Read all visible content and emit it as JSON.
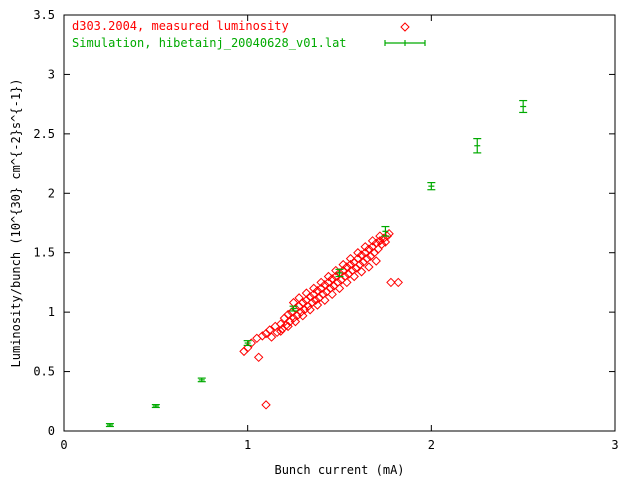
{
  "chart_data": {
    "type": "scatter",
    "xlabel": "Bunch current (mA)",
    "ylabel": "Luminosity/bunch (10^{30} cm^{-2}s^{-1})",
    "xlim": [
      0,
      3
    ],
    "ylim": [
      0,
      3.5
    ],
    "xticks": [
      "0",
      "1",
      "2",
      "3"
    ],
    "yticks": [
      "0",
      "0.5",
      "1",
      "1.5",
      "2",
      "2.5",
      "3",
      "3.5"
    ],
    "legend_position": "top-left",
    "series": [
      {
        "name": "d303.2004, measured luminosity",
        "marker": "diamond",
        "color": "#ff0000",
        "points": [
          [
            0.98,
            0.67
          ],
          [
            1.0,
            0.7
          ],
          [
            1.02,
            0.74
          ],
          [
            1.05,
            0.78
          ],
          [
            1.06,
            0.62
          ],
          [
            1.08,
            0.8
          ],
          [
            1.1,
            0.22
          ],
          [
            1.1,
            0.82
          ],
          [
            1.12,
            0.85
          ],
          [
            1.13,
            0.79
          ],
          [
            1.15,
            0.88
          ],
          [
            1.16,
            0.83
          ],
          [
            1.18,
            0.9
          ],
          [
            1.19,
            0.86
          ],
          [
            1.2,
            0.95
          ],
          [
            1.21,
            0.89
          ],
          [
            1.22,
            0.98
          ],
          [
            1.23,
            0.92
          ],
          [
            1.24,
            1.0
          ],
          [
            1.25,
            0.95
          ],
          [
            1.26,
            1.03
          ],
          [
            1.27,
            0.97
          ],
          [
            1.28,
            1.05
          ],
          [
            1.29,
            1.0
          ],
          [
            1.3,
            1.08
          ],
          [
            1.31,
            1.02
          ],
          [
            1.32,
            1.1
          ],
          [
            1.33,
            1.05
          ],
          [
            1.34,
            1.13
          ],
          [
            1.35,
            1.08
          ],
          [
            1.36,
            1.15
          ],
          [
            1.37,
            1.1
          ],
          [
            1.38,
            1.18
          ],
          [
            1.39,
            1.12
          ],
          [
            1.4,
            1.2
          ],
          [
            1.41,
            1.15
          ],
          [
            1.42,
            1.23
          ],
          [
            1.43,
            1.17
          ],
          [
            1.44,
            1.25
          ],
          [
            1.45,
            1.2
          ],
          [
            1.46,
            1.28
          ],
          [
            1.47,
            1.22
          ],
          [
            1.48,
            1.3
          ],
          [
            1.49,
            1.25
          ],
          [
            1.5,
            1.33
          ],
          [
            1.51,
            1.27
          ],
          [
            1.52,
            1.35
          ],
          [
            1.53,
            1.3
          ],
          [
            1.54,
            1.38
          ],
          [
            1.55,
            1.32
          ],
          [
            1.56,
            1.4
          ],
          [
            1.57,
            1.35
          ],
          [
            1.58,
            1.42
          ],
          [
            1.59,
            1.37
          ],
          [
            1.6,
            1.45
          ],
          [
            1.61,
            1.4
          ],
          [
            1.62,
            1.48
          ],
          [
            1.63,
            1.42
          ],
          [
            1.64,
            1.5
          ],
          [
            1.65,
            1.45
          ],
          [
            1.66,
            1.53
          ],
          [
            1.67,
            1.47
          ],
          [
            1.68,
            1.55
          ],
          [
            1.69,
            1.5
          ],
          [
            1.7,
            1.58
          ],
          [
            1.71,
            1.53
          ],
          [
            1.72,
            1.6
          ],
          [
            1.73,
            1.57
          ],
          [
            1.74,
            1.62
          ],
          [
            1.75,
            1.59
          ],
          [
            1.76,
            1.64
          ],
          [
            1.77,
            1.66
          ],
          [
            1.78,
            1.25
          ],
          [
            1.82,
            1.25
          ],
          [
            1.18,
            0.84
          ],
          [
            1.22,
            0.88
          ],
          [
            1.26,
            0.92
          ],
          [
            1.3,
            0.97
          ],
          [
            1.34,
            1.02
          ],
          [
            1.38,
            1.06
          ],
          [
            1.42,
            1.1
          ],
          [
            1.46,
            1.15
          ],
          [
            1.5,
            1.2
          ],
          [
            1.54,
            1.25
          ],
          [
            1.58,
            1.3
          ],
          [
            1.62,
            1.34
          ],
          [
            1.66,
            1.38
          ],
          [
            1.7,
            1.43
          ],
          [
            1.25,
            1.08
          ],
          [
            1.28,
            1.12
          ],
          [
            1.32,
            1.16
          ],
          [
            1.36,
            1.2
          ],
          [
            1.4,
            1.25
          ],
          [
            1.44,
            1.3
          ],
          [
            1.48,
            1.35
          ],
          [
            1.52,
            1.4
          ],
          [
            1.56,
            1.45
          ],
          [
            1.6,
            1.5
          ],
          [
            1.64,
            1.55
          ],
          [
            1.68,
            1.6
          ],
          [
            1.72,
            1.64
          ]
        ]
      },
      {
        "name": "Simulation, hibetainj_20040628_v01.lat",
        "marker": "errorbar",
        "color": "#00aa00",
        "points": [
          [
            0.25,
            0.05,
            0.01
          ],
          [
            0.5,
            0.21,
            0.01
          ],
          [
            0.75,
            0.43,
            0.015
          ],
          [
            1.0,
            0.74,
            0.02
          ],
          [
            1.25,
            1.03,
            0.02
          ],
          [
            1.5,
            1.33,
            0.03
          ],
          [
            1.75,
            1.68,
            0.04
          ],
          [
            2.0,
            2.06,
            0.03
          ],
          [
            2.25,
            2.4,
            0.06
          ],
          [
            2.5,
            2.73,
            0.05
          ]
        ]
      }
    ]
  }
}
